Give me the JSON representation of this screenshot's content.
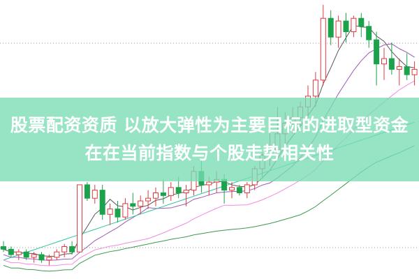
{
  "banner": {
    "text": "股票配资资质 以放大弹性为主要目标的进取型资金在在当前指数与个股走势相关性"
  },
  "colors": {
    "up": "#e0393e",
    "down": "#1aa34a",
    "banner": "#8fe0c4",
    "ma5": "#555555",
    "ma10": "#9b59b6",
    "ma20": "#f08ce0",
    "ma60": "#3a9a4a",
    "ma120": "#2ec4a0"
  },
  "chart_data": {
    "type": "candlestick",
    "title": "",
    "grid": "dotted horizontal",
    "ylim": [
      0,
      100
    ],
    "candles": [
      [
        10,
        12,
        8,
        9
      ],
      [
        9,
        10,
        6,
        7
      ],
      [
        7,
        9,
        5,
        8
      ],
      [
        8,
        9,
        5,
        6
      ],
      [
        6,
        8,
        4,
        7
      ],
      [
        7,
        8,
        4,
        5
      ],
      [
        5,
        7,
        3,
        6
      ],
      [
        6,
        9,
        5,
        8
      ],
      [
        8,
        11,
        6,
        10
      ],
      [
        10,
        12,
        7,
        8
      ],
      [
        8,
        33,
        8,
        33
      ],
      [
        33,
        34,
        27,
        28
      ],
      [
        28,
        33,
        26,
        31
      ],
      [
        31,
        33,
        20,
        22
      ],
      [
        22,
        26,
        18,
        24
      ],
      [
        24,
        27,
        19,
        21
      ],
      [
        21,
        28,
        20,
        26
      ],
      [
        26,
        30,
        22,
        25
      ],
      [
        25,
        29,
        22,
        27
      ],
      [
        27,
        31,
        24,
        28
      ],
      [
        28,
        32,
        25,
        30
      ],
      [
        30,
        35,
        26,
        29
      ],
      [
        29,
        34,
        27,
        32
      ],
      [
        32,
        36,
        28,
        30
      ],
      [
        30,
        33,
        25,
        31
      ],
      [
        31,
        40,
        29,
        38
      ],
      [
        38,
        42,
        30,
        33
      ],
      [
        33,
        36,
        29,
        34
      ],
      [
        34,
        38,
        30,
        35
      ],
      [
        35,
        37,
        26,
        31
      ],
      [
        31,
        34,
        28,
        32
      ],
      [
        32,
        33,
        29,
        30
      ],
      [
        30,
        34,
        28,
        33
      ],
      [
        33,
        40,
        31,
        39
      ],
      [
        39,
        45,
        36,
        44
      ],
      [
        44,
        58,
        40,
        46
      ],
      [
        46,
        62,
        44,
        52
      ],
      [
        52,
        60,
        48,
        56
      ],
      [
        56,
        62,
        52,
        58
      ],
      [
        58,
        64,
        55,
        62
      ],
      [
        62,
        70,
        58,
        66
      ],
      [
        66,
        75,
        62,
        72
      ],
      [
        72,
        100,
        70,
        95
      ],
      [
        95,
        98,
        85,
        88
      ],
      [
        88,
        96,
        84,
        94
      ],
      [
        94,
        97,
        86,
        90
      ],
      [
        90,
        96,
        88,
        95
      ],
      [
        95,
        97,
        88,
        92
      ],
      [
        92,
        94,
        84,
        87
      ],
      [
        87,
        90,
        70,
        78
      ],
      [
        78,
        84,
        72,
        80
      ],
      [
        80,
        86,
        74,
        76
      ],
      [
        76,
        80,
        70,
        77
      ],
      [
        77,
        82,
        72,
        74
      ],
      [
        74,
        79,
        70,
        76
      ]
    ],
    "moving_averages": [
      "MA5",
      "MA10",
      "MA20",
      "MA60"
    ]
  }
}
